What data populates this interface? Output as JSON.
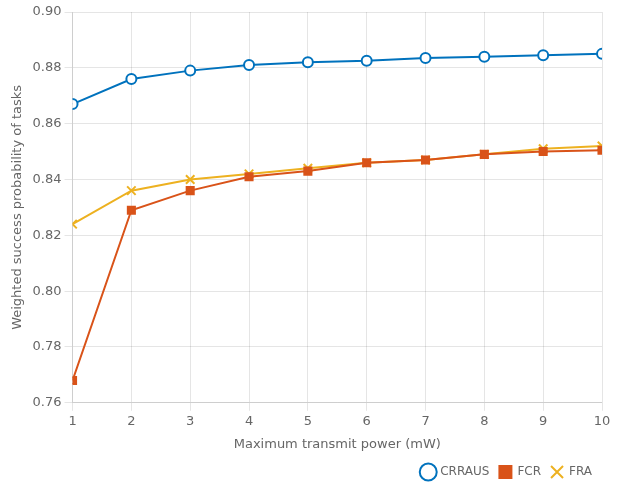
{
  "chart_data": {
    "type": "line",
    "x_label": "Maximum transmit power (mW)",
    "y_label": "Weighted success probability of tasks",
    "x": [
      1,
      2,
      3,
      4,
      5,
      6,
      7,
      8,
      9,
      10
    ],
    "series": [
      {
        "name": "CRRAUS",
        "color": "#0072BD",
        "marker": "circle",
        "values": [
          0.867,
          0.876,
          0.879,
          0.881,
          0.882,
          0.8825,
          0.8835,
          0.884,
          0.8845,
          0.885
        ]
      },
      {
        "name": "FCR",
        "color": "#D95319",
        "marker": "square",
        "values": [
          0.768,
          0.829,
          0.836,
          0.841,
          0.843,
          0.846,
          0.847,
          0.849,
          0.85,
          0.8505
        ]
      },
      {
        "name": "FRA",
        "color": "#EDB120",
        "marker": "x",
        "values": [
          0.824,
          0.836,
          0.84,
          0.842,
          0.844,
          0.846,
          0.847,
          0.849,
          0.851,
          0.852
        ]
      }
    ],
    "xlim": [
      1,
      10
    ],
    "ylim": [
      0.76,
      0.9
    ],
    "xticks": [
      1,
      2,
      3,
      4,
      5,
      6,
      7,
      8,
      9,
      10
    ],
    "yticks": [
      0.76,
      0.78,
      {
        "value": 0.8,
        "label": "0.80"
      },
      0.82,
      0.84,
      0.86,
      0.88,
      {
        "value": 0.9,
        "label": "0.90"
      }
    ],
    "grid": true,
    "legend": "lower right"
  }
}
